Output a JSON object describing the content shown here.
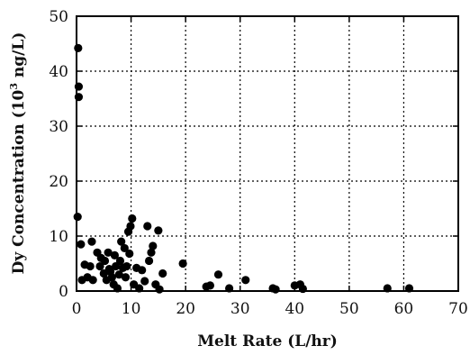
{
  "chart_data": {
    "type": "scatter",
    "xlabel": "Melt Rate (L/hr)",
    "ylabel_main": "Dy Concentration (10",
    "ylabel_sup": "3",
    "ylabel_tail": " ng/L)",
    "xlim": [
      0,
      70
    ],
    "ylim": [
      0,
      50
    ],
    "x_ticks": [
      0,
      10,
      20,
      30,
      40,
      50,
      60,
      70
    ],
    "y_ticks": [
      0,
      10,
      20,
      30,
      40,
      50
    ],
    "grid": true,
    "points": [
      [
        0.3,
        44.2
      ],
      [
        0.4,
        37.2
      ],
      [
        0.4,
        35.3
      ],
      [
        0.2,
        13.5
      ],
      [
        0.8,
        8.5
      ],
      [
        1.0,
        2.0
      ],
      [
        1.5,
        4.8
      ],
      [
        2.0,
        2.5
      ],
      [
        2.5,
        4.5
      ],
      [
        2.8,
        9.0
      ],
      [
        3.0,
        2.0
      ],
      [
        3.8,
        7.0
      ],
      [
        4.3,
        4.5
      ],
      [
        4.5,
        6.0
      ],
      [
        5.0,
        3.2
      ],
      [
        5.2,
        5.5
      ],
      [
        5.5,
        2.0
      ],
      [
        5.8,
        7.0
      ],
      [
        6.0,
        4.0
      ],
      [
        6.2,
        3.5
      ],
      [
        6.5,
        2.5
      ],
      [
        6.8,
        1.2
      ],
      [
        7.0,
        6.5
      ],
      [
        7.2,
        4.5
      ],
      [
        7.5,
        0.5
      ],
      [
        7.8,
        3.0
      ],
      [
        8.0,
        5.5
      ],
      [
        8.2,
        9.0
      ],
      [
        8.5,
        4.2
      ],
      [
        8.8,
        7.8
      ],
      [
        9.0,
        2.5
      ],
      [
        9.2,
        4.5
      ],
      [
        9.5,
        10.8
      ],
      [
        9.7,
        6.8
      ],
      [
        9.9,
        11.8
      ],
      [
        10.2,
        13.2
      ],
      [
        10.5,
        1.2
      ],
      [
        11.0,
        4.2
      ],
      [
        11.5,
        0.5
      ],
      [
        12.0,
        3.8
      ],
      [
        12.5,
        1.8
      ],
      [
        13.0,
        11.8
      ],
      [
        13.3,
        5.5
      ],
      [
        13.7,
        7.0
      ],
      [
        14.0,
        8.2
      ],
      [
        14.5,
        1.2
      ],
      [
        15.0,
        11.0
      ],
      [
        15.2,
        0.3
      ],
      [
        15.8,
        3.2
      ],
      [
        19.5,
        5.0
      ],
      [
        23.8,
        0.8
      ],
      [
        24.5,
        1.0
      ],
      [
        26.0,
        3.0
      ],
      [
        28.0,
        0.5
      ],
      [
        31.0,
        2.0
      ],
      [
        36.0,
        0.5
      ],
      [
        36.5,
        0.3
      ],
      [
        40.0,
        1.0
      ],
      [
        41.0,
        1.2
      ],
      [
        41.5,
        0.4
      ],
      [
        57.0,
        0.5
      ],
      [
        61.0,
        0.5
      ]
    ]
  }
}
